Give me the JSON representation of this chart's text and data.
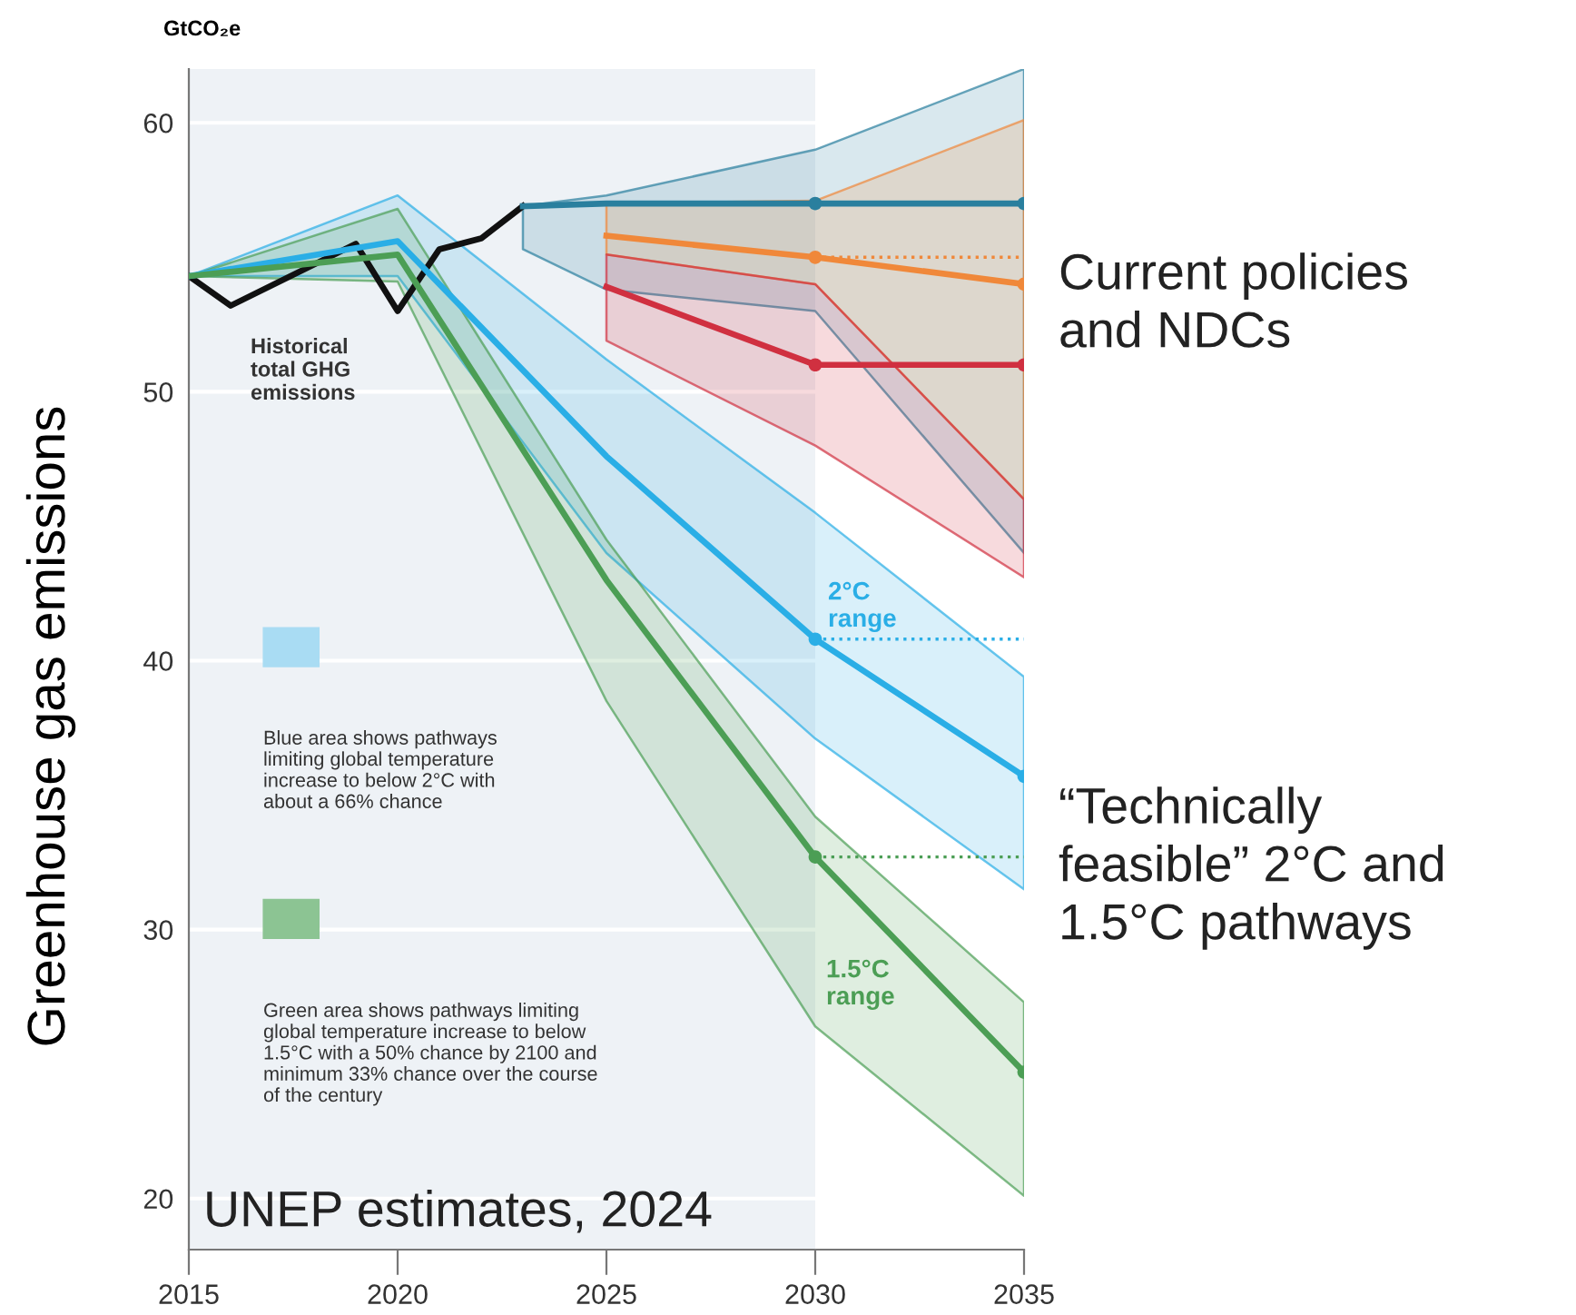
{
  "chart_data": {
    "type": "line",
    "ylabel": "Greenhouse gas emissions",
    "xlim": [
      2015,
      2035
    ],
    "xticks": [
      2015,
      2020,
      2025,
      2030,
      2035
    ],
    "ylim": [
      18.1,
      62
    ],
    "yticks": [
      20,
      30,
      40,
      50,
      60
    ],
    "grid": "y",
    "bands": [
      {
        "axis": "x",
        "from": 2015,
        "to": 2030,
        "color": "#eef2f6"
      }
    ],
    "series": [
      {
        "color": "#111111",
        "x": [
          2015,
          2016,
          2019,
          2020,
          2021,
          2022,
          2023
        ],
        "values": [
          54.3,
          53.2,
          55.5,
          53.0,
          55.3,
          55.7,
          56.9
        ]
      },
      {
        "color": "#2a7f9e",
        "x": [
          2023,
          2025,
          2030,
          2035
        ],
        "values": [
          56.9,
          57.0,
          57.0,
          57.0
        ],
        "lower": [
          55.3,
          53.8,
          53.0,
          44.0
        ],
        "upper": [
          56.9,
          57.3,
          59.0,
          62.0
        ]
      },
      {
        "color": "#f0883a",
        "x": [
          2025,
          2030,
          2035
        ],
        "values": [
          55.8,
          55.0,
          54.0
        ],
        "lower": [
          55.1,
          54.0,
          46.0
        ],
        "upper": [
          57.0,
          57.1,
          60.1
        ]
      },
      {
        "color": "#d03040",
        "x": [
          2025,
          2030,
          2035
        ],
        "values": [
          53.9,
          51.0,
          51.0
        ],
        "lower": [
          51.9,
          48.0,
          43.1
        ],
        "upper": [
          55.1,
          54.0,
          46.0
        ]
      },
      {
        "color": "#2aaee6",
        "x": [
          2015,
          2020,
          2025,
          2030,
          2035
        ],
        "values": [
          54.3,
          55.6,
          47.6,
          40.8,
          35.7
        ],
        "lower": [
          54.3,
          54.3,
          44.0,
          37.1,
          31.5
        ],
        "upper": [
          54.3,
          57.3,
          51.2,
          45.5,
          39.4
        ]
      },
      {
        "color": "#4c9e55",
        "x": [
          2015,
          2020,
          2025,
          2030,
          2035
        ],
        "values": [
          54.3,
          55.1,
          43.0,
          32.7,
          24.7
        ],
        "lower": [
          54.3,
          54.1,
          38.5,
          26.4,
          20.1
        ],
        "upper": [
          54.3,
          56.8,
          44.5,
          34.2,
          27.3
        ]
      },
      {
        "type": "line",
        "color": "#f0883a",
        "line_style": "dotted",
        "x": [
          2030,
          2035
        ],
        "values": [
          55.0,
          55.0
        ]
      },
      {
        "type": "line",
        "color": "#2aaee6",
        "line_style": "dotted",
        "x": [
          2030,
          2035
        ],
        "values": [
          40.8,
          40.8
        ]
      },
      {
        "type": "line",
        "color": "#4c9e55",
        "line_style": "dotted",
        "x": [
          2030,
          2035
        ],
        "values": [
          32.7,
          32.7
        ]
      },
      {
        "type": "scatter",
        "x": [
          2030,
          2035,
          2030,
          2035,
          2030,
          2035,
          2030,
          2035,
          2030,
          2035
        ],
        "values": [
          57.0,
          57.0,
          55.0,
          54.0,
          51.0,
          51.0,
          40.8,
          35.7,
          32.7,
          24.7
        ],
        "colors": [
          "#2a7f9e",
          "#2a7f9e",
          "#f0883a",
          "#f0883a",
          "#d03040",
          "#d03040",
          "#2aaee6",
          "#2aaee6",
          "#4c9e55",
          "#4c9e55"
        ]
      }
    ],
    "annotations": [
      "Historical\ntotal GHG\nemissions",
      "2°C\nrange",
      "1.5°C\nrange",
      "GtCO₂e",
      "Blue area shows pathways\nlimiting global temperature\nincrease to below 2°C with\nabout a 66% chance",
      "Green area shows pathways limiting\nglobal temperature increase to below\n1.5°C with a 50% chance by 2100 and\nminimum 33% chance over the course\nof the century",
      "UNEP estimates, 2024",
      "Current policies\nand NDCs",
      "“Technically\nfeasible” 2°C and\n1.5°C pathways"
    ]
  }
}
